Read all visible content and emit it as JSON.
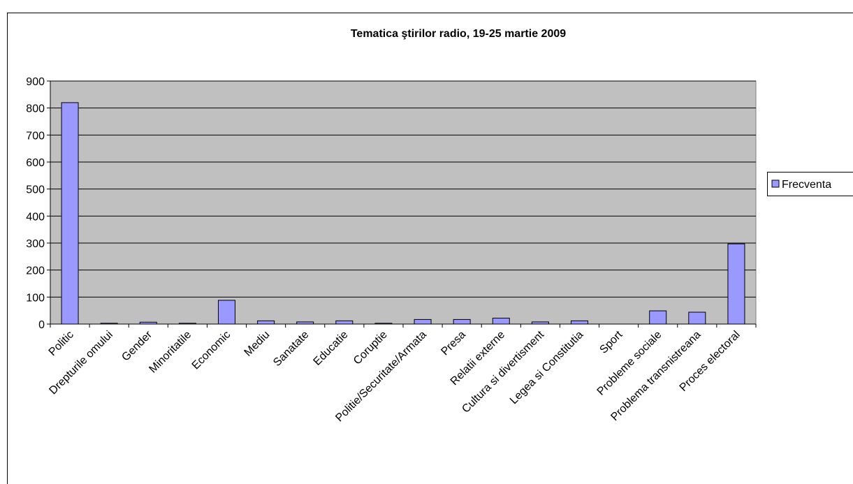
{
  "chart_data": {
    "type": "bar",
    "title": "Tematica ştirilor radio, 19-25 martie 2009",
    "categories": [
      "Politic",
      "Drepturile omului",
      "Gender",
      "Minoritatile",
      "Economic",
      "Mediu",
      "Sanatate",
      "Educatie",
      "Coruptie",
      "Politie/Securitate/Armata",
      "Presa",
      "Relatii externe",
      "Cultura si divertisment",
      "Legea si Constitutia",
      "Sport",
      "Probleme sociale",
      "Problema transnistreana",
      "Proces electoral"
    ],
    "series": [
      {
        "name": "Frecventa",
        "color": "#9999ff",
        "values": [
          820,
          3,
          7,
          3,
          88,
          12,
          8,
          12,
          3,
          17,
          17,
          22,
          8,
          12,
          0,
          49,
          44,
          297
        ]
      }
    ],
    "ylim": [
      0,
      900
    ],
    "yticks": [
      0,
      100,
      200,
      300,
      400,
      500,
      600,
      700,
      800,
      900
    ],
    "grid": true,
    "legend": "right"
  }
}
